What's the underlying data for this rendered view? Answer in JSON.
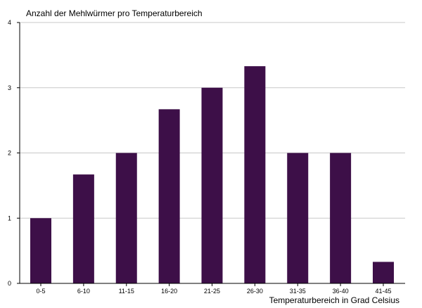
{
  "chart_data": {
    "type": "bar",
    "title": "",
    "ylabel": "Anzahl der Mehlwürmer pro Temperaturbereich",
    "xlabel": "Temperaturbereich in Grad Celsius",
    "categories": [
      "0-5",
      "6-10",
      "11-15",
      "16-20",
      "21-25",
      "26-30",
      "31-35",
      "36-40",
      "41-45"
    ],
    "values": [
      1,
      1.67,
      2,
      2.67,
      3,
      3.33,
      2,
      2,
      0.33
    ],
    "ylim": [
      0,
      4
    ],
    "yticks": [
      "0",
      "1",
      "2",
      "3",
      "4"
    ],
    "grid": true,
    "legend": "none",
    "bar_color": "#3d0f48",
    "grid_color": "#c8c8c8"
  }
}
